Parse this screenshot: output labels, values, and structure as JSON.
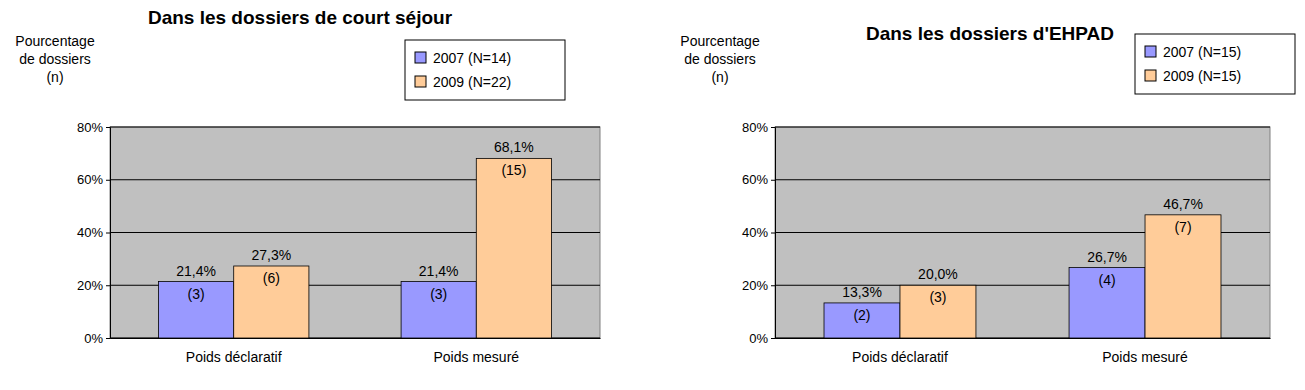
{
  "chart_data": [
    {
      "type": "bar",
      "title": "Dans les dossiers de court séjour",
      "ylabel": "Pourcentage\nde dossiers\n(n)",
      "categories": [
        "Poids déclaratif",
        "Poids mesuré"
      ],
      "series": [
        {
          "name": "2007 (N=14)",
          "color": "#9999ff",
          "values": [
            21.4,
            21.4
          ],
          "value_labels": [
            "21,4%",
            "21,4%"
          ],
          "count_labels": [
            "(3)",
            "(3)"
          ]
        },
        {
          "name": "2009 (N=22)",
          "color": "#ffcc99",
          "values": [
            27.3,
            68.1
          ],
          "value_labels": [
            "27,3%",
            "68,1%"
          ],
          "count_labels": [
            "(6)",
            "(15)"
          ]
        }
      ],
      "ylim": [
        0,
        80
      ],
      "yticks": [
        {
          "value": 0,
          "label": "0%"
        },
        {
          "value": 20,
          "label": "20%"
        },
        {
          "value": 40,
          "label": "40%"
        },
        {
          "value": 60,
          "label": "60%"
        },
        {
          "value": 80,
          "label": "80%"
        }
      ],
      "grid": true,
      "legend": "top-right",
      "data_labels": true
    },
    {
      "type": "bar",
      "title": "Dans les dossiers d'EHPAD",
      "ylabel": "Pourcentage\nde dossiers\n(n)",
      "categories": [
        "Poids déclaratif",
        "Poids mesuré"
      ],
      "series": [
        {
          "name": "2007 (N=15)",
          "color": "#9999ff",
          "values": [
            13.3,
            26.7
          ],
          "value_labels": [
            "13,3%",
            "26,7%"
          ],
          "count_labels": [
            "(2)",
            "(4)"
          ]
        },
        {
          "name": "2009 (N=15)",
          "color": "#ffcc99",
          "values": [
            20.0,
            46.7
          ],
          "value_labels": [
            "20,0%",
            "46,7%"
          ],
          "count_labels": [
            "(3)",
            "(7)"
          ]
        }
      ],
      "ylim": [
        0,
        80
      ],
      "yticks": [
        {
          "value": 0,
          "label": "0%"
        },
        {
          "value": 20,
          "label": "20%"
        },
        {
          "value": 40,
          "label": "40%"
        },
        {
          "value": 60,
          "label": "60%"
        },
        {
          "value": 80,
          "label": "80%"
        }
      ],
      "grid": true,
      "legend": "top-right",
      "data_labels": true
    }
  ]
}
